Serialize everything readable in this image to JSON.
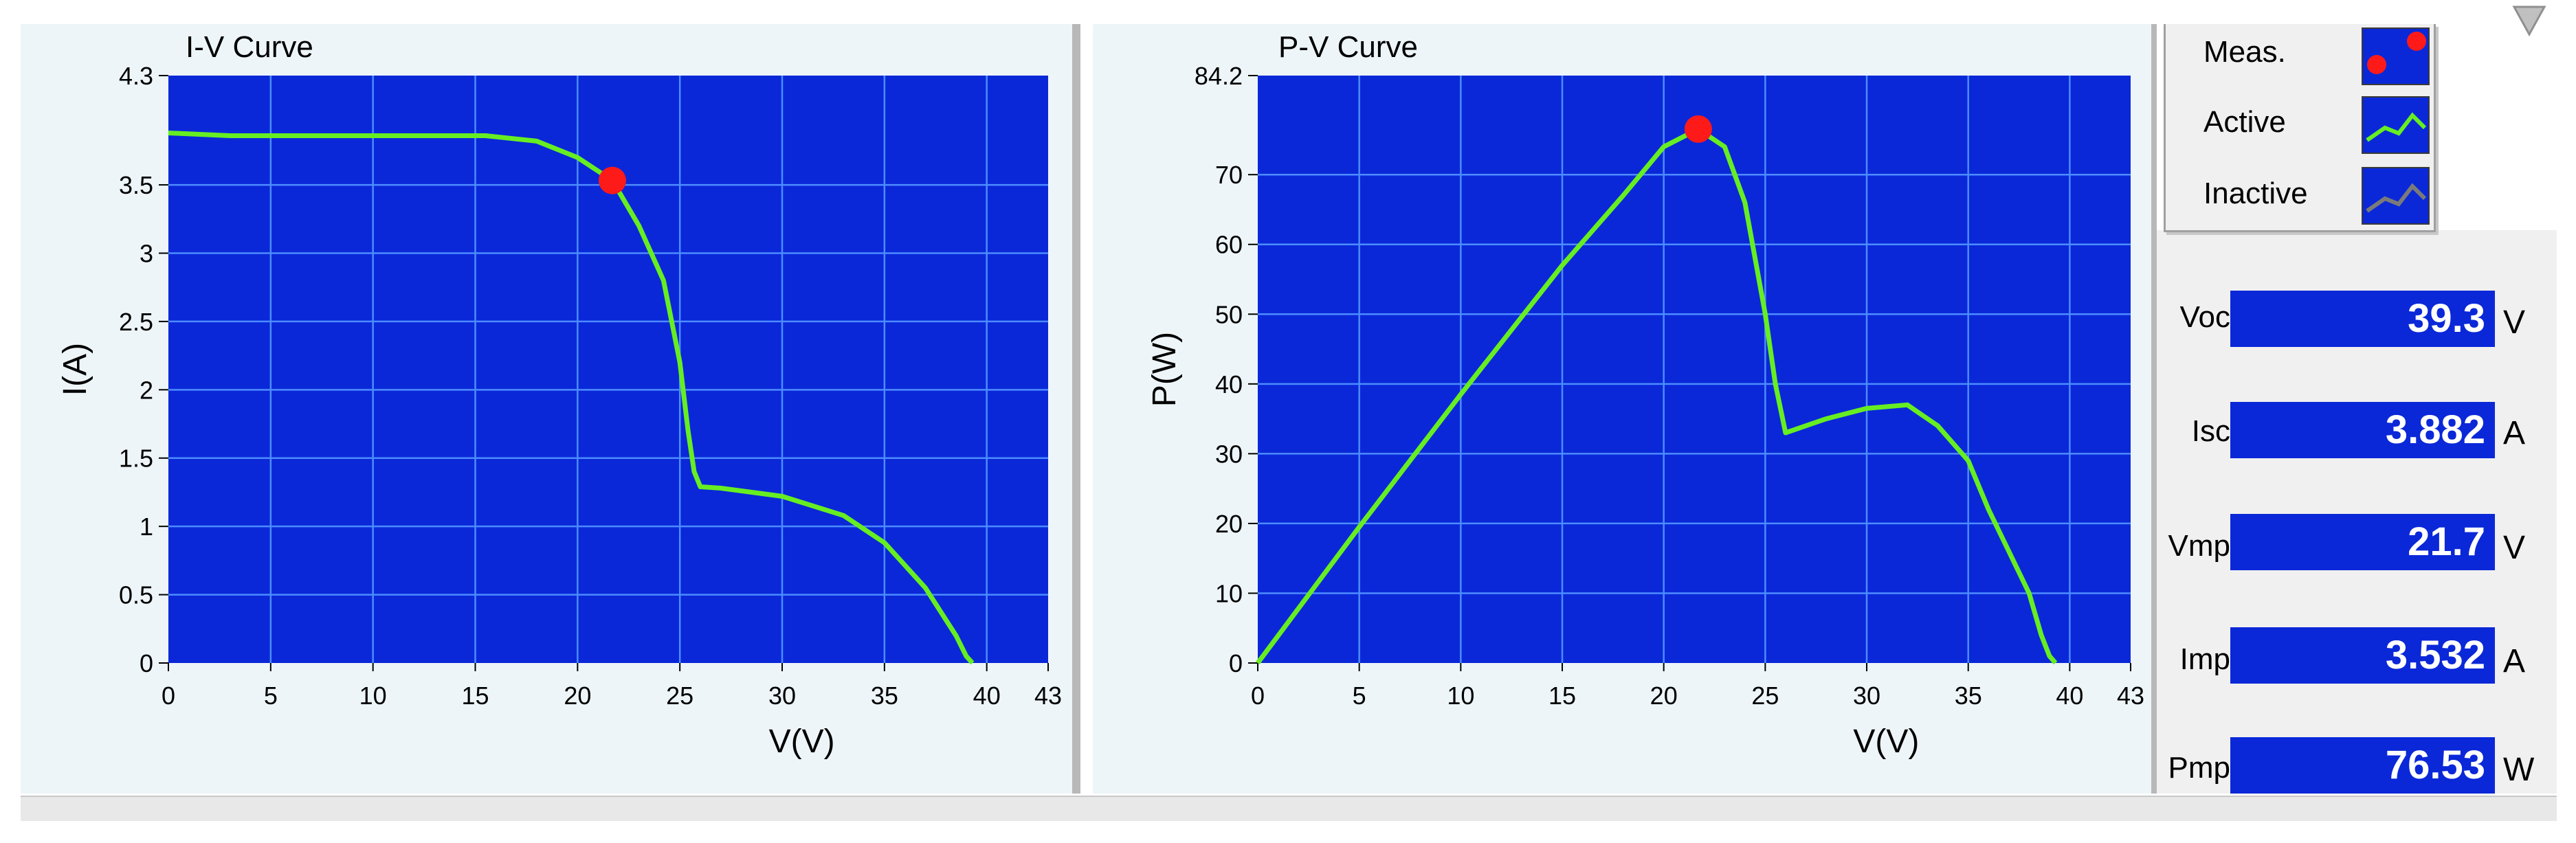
{
  "colors": {
    "plot_bg": "#0a28d8",
    "grid": "#4c8cff",
    "curve": "#66ee22",
    "marker": "#ff1a1a",
    "indicator_bg": "#0a28d8"
  },
  "chart_data": [
    {
      "type": "line",
      "title": "I-V Curve",
      "xlabel": "V(V)",
      "ylabel": "I(A)",
      "xlim": [
        0,
        43
      ],
      "ylim": [
        0,
        4.3
      ],
      "xticks": [
        "0",
        "5",
        "10",
        "15",
        "20",
        "25",
        "30",
        "35",
        "40",
        "43"
      ],
      "yticks": [
        "0",
        "0.5",
        "1",
        "1.5",
        "2",
        "2.5",
        "3",
        "3.5",
        "4.3"
      ],
      "grid": true,
      "series": [
        {
          "x": [
            0,
            3,
            10,
            15.5,
            18,
            20,
            21.7,
            23,
            24.2,
            25,
            25.4,
            25.7,
            26,
            27,
            30,
            33,
            35,
            37,
            38.5,
            39,
            39.3
          ],
          "y": [
            3.88,
            3.86,
            3.86,
            3.86,
            3.82,
            3.7,
            3.532,
            3.2,
            2.8,
            2.2,
            1.7,
            1.4,
            1.29,
            1.28,
            1.22,
            1.08,
            0.88,
            0.55,
            0.2,
            0.05,
            0
          ]
        }
      ],
      "marker": {
        "x": 21.7,
        "y": 3.532
      }
    },
    {
      "type": "line",
      "title": "P-V Curve",
      "xlabel": "V(V)",
      "ylabel": "P(W)",
      "xlim": [
        0,
        43
      ],
      "ylim": [
        0,
        84.2
      ],
      "xticks": [
        "0",
        "5",
        "10",
        "15",
        "20",
        "25",
        "30",
        "35",
        "40",
        "43"
      ],
      "yticks": [
        "0",
        "10",
        "20",
        "30",
        "40",
        "50",
        "60",
        "70",
        "84.2"
      ],
      "grid": true,
      "series": [
        {
          "x": [
            0,
            5,
            10,
            15,
            18,
            20,
            21.7,
            23,
            24,
            25,
            25.5,
            26,
            28,
            30,
            32,
            33.5,
            35,
            36,
            37,
            38,
            38.6,
            39,
            39.3
          ],
          "y": [
            0,
            19.5,
            38.5,
            57,
            67,
            74,
            76.53,
            74,
            66,
            50,
            40,
            33,
            35,
            36.5,
            37,
            34,
            29,
            22,
            16,
            10,
            4,
            1,
            0
          ]
        }
      ],
      "marker": {
        "x": 21.7,
        "y": 76.53
      }
    }
  ],
  "legend": {
    "items": [
      {
        "label": "Meas.",
        "icon": "red-dots-icon"
      },
      {
        "label": "Active",
        "icon": "green-line-icon"
      },
      {
        "label": "Inactive",
        "icon": "gray-line-icon"
      }
    ]
  },
  "indicators": [
    {
      "label": "Voc",
      "value": "39.3",
      "unit": "V"
    },
    {
      "label": "Isc",
      "value": "3.882",
      "unit": "A"
    },
    {
      "label": "Vmp",
      "value": "21.7",
      "unit": "V"
    },
    {
      "label": "Imp",
      "value": "3.532",
      "unit": "A"
    },
    {
      "label": "Pmp",
      "value": "76.53",
      "unit": "W"
    }
  ]
}
